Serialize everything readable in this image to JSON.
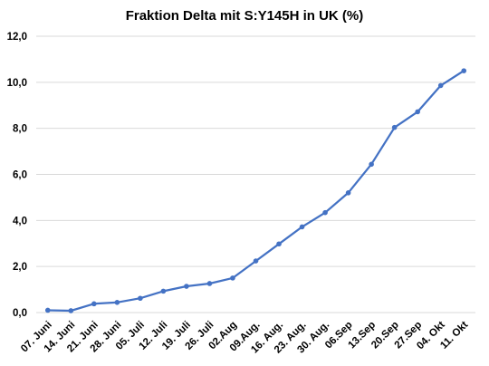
{
  "chart_data": {
    "type": "line",
    "title": "Fraktion Delta mit S:Y145H in UK (%)",
    "xlabel": "",
    "ylabel": "",
    "ylim": [
      0,
      12
    ],
    "yticks": [
      "0,0",
      "2,0",
      "4,0",
      "6,0",
      "8,0",
      "10,0",
      "12,0"
    ],
    "grid": true,
    "legend": "none",
    "line_color": "#4472c4",
    "categories": [
      "07. Juni",
      "14. Juni",
      "21. Juni",
      "28. Juni",
      "05. Juli",
      "12. Juli",
      "19. Juli",
      "26. Juli",
      "02.Aug",
      "09.Aug.",
      "16. Aug.",
      "23. Aug.",
      "30. Aug.",
      "06.Sep",
      "13.Sep",
      "20.Sep",
      "27.Sep",
      "04. Okt",
      "11. Okt"
    ],
    "series": [
      {
        "values": [
          0.1,
          0.08,
          0.38,
          0.44,
          0.62,
          0.93,
          1.14,
          1.26,
          1.5,
          2.24,
          2.98,
          3.72,
          4.34,
          5.2,
          6.44,
          8.04,
          8.72,
          9.86,
          10.5
        ]
      }
    ]
  }
}
